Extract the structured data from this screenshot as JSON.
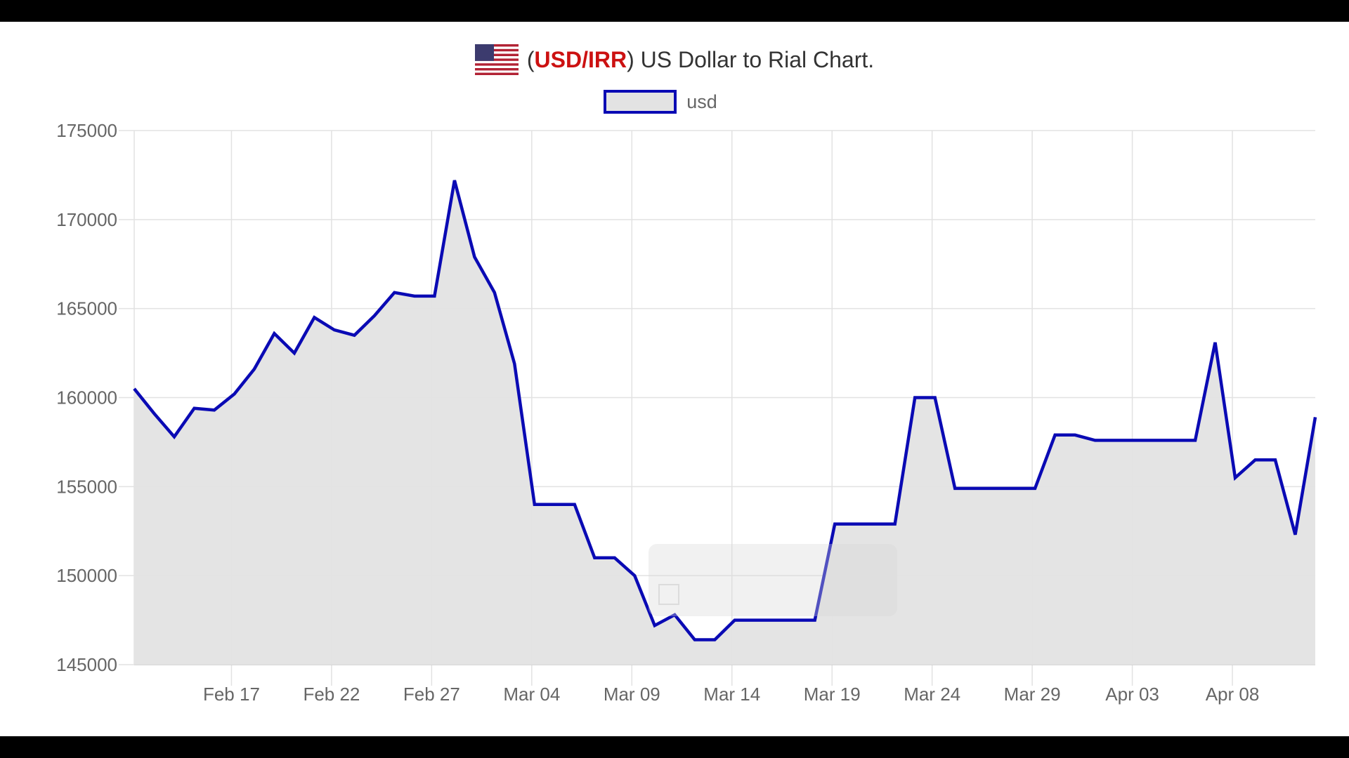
{
  "header": {
    "flag_icon": "us-flag-icon",
    "paren_open": "(",
    "pair": "USD/IRR",
    "paren_close": ")",
    "title_rest": " US Dollar to Rial Chart."
  },
  "legend": {
    "label": "usd",
    "swatch_border": "#0a0ab4",
    "swatch_fill": "#e3e3e3"
  },
  "colors": {
    "line": "#0a0ab4",
    "fill": "#e3e3e3",
    "grid": "#e2e2e2",
    "tick_text": "#666666",
    "pair_text": "#cc1111"
  },
  "chart_data": {
    "type": "area",
    "title": "(USD/IRR) US Dollar to Rial Chart.",
    "xlabel": "",
    "ylabel": "",
    "ylim": [
      145000,
      175000
    ],
    "yticks": [
      175000,
      170000,
      165000,
      160000,
      155000,
      150000,
      145000
    ],
    "xticks": [
      {
        "label": "Feb 17",
        "index": 5
      },
      {
        "label": "Feb 22",
        "index": 10
      },
      {
        "label": "Feb 27",
        "index": 15
      },
      {
        "label": "Mar 04",
        "index": 20
      },
      {
        "label": "Mar 09",
        "index": 25
      },
      {
        "label": "Mar 14",
        "index": 30
      },
      {
        "label": "Mar 19",
        "index": 35
      },
      {
        "label": "Mar 24",
        "index": 40
      },
      {
        "label": "Mar 29",
        "index": 45
      },
      {
        "label": "Apr 03",
        "index": 50
      },
      {
        "label": "Apr 08",
        "index": 55
      }
    ],
    "grid": true,
    "legend_position": "top",
    "series": [
      {
        "name": "usd",
        "x": [
          "Feb 12",
          "Feb 13",
          "Feb 14",
          "Feb 15",
          "Feb 16",
          "Feb 17",
          "Feb 18",
          "Feb 19",
          "Feb 20",
          "Feb 21",
          "Feb 22",
          "Feb 23",
          "Feb 24",
          "Feb 25",
          "Feb 26",
          "Feb 27",
          "Feb 28",
          "Mar 01",
          "Mar 02",
          "Mar 03",
          "Mar 04",
          "Mar 05",
          "Mar 06",
          "Mar 07",
          "Mar 08",
          "Mar 09",
          "Mar 10",
          "Mar 11",
          "Mar 12",
          "Mar 13",
          "Mar 14",
          "Mar 15",
          "Mar 16",
          "Mar 17",
          "Mar 18",
          "Mar 19",
          "Mar 20",
          "Mar 21",
          "Mar 22",
          "Mar 23",
          "Mar 24",
          "Mar 25",
          "Mar 26",
          "Mar 27",
          "Mar 28",
          "Mar 29",
          "Mar 30",
          "Mar 31",
          "Apr 01",
          "Apr 02",
          "Apr 03",
          "Apr 04",
          "Apr 05",
          "Apr 06",
          "Apr 07",
          "Apr 08",
          "Apr 09",
          "Apr 10",
          "Apr 11",
          "Apr 12"
        ],
        "values": [
          160500,
          159100,
          157800,
          159400,
          159300,
          160200,
          161600,
          163600,
          162500,
          164500,
          163800,
          163500,
          164600,
          165900,
          165700,
          165700,
          172200,
          167900,
          165900,
          161900,
          154000,
          154000,
          154000,
          151000,
          151000,
          150000,
          147200,
          147800,
          146400,
          146400,
          147500,
          147500,
          147500,
          147500,
          147500,
          152900,
          152900,
          152900,
          152900,
          160000,
          160000,
          154900,
          154900,
          154900,
          154900,
          154900,
          157900,
          157900,
          157600,
          157600,
          157600,
          157600,
          157600,
          157600,
          163100,
          155500,
          156500,
          156500,
          152300,
          158900
        ]
      }
    ]
  }
}
